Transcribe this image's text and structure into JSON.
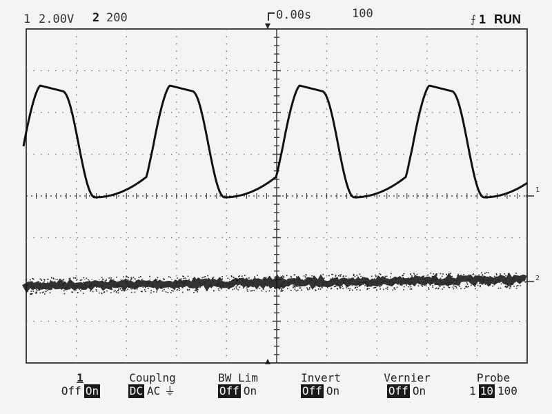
{
  "status": {
    "ch1_label": "1",
    "ch1_scale": "2.00V",
    "ch2_label": "2",
    "ch2_scale": "200",
    "time_offset": "0.00s",
    "time_scale": "100",
    "trigger_label": "1",
    "run_state": "RUN"
  },
  "markers": {
    "ch1": "1",
    "ch2": "2"
  },
  "softkeys": [
    {
      "title": "1",
      "options": [
        "Off",
        "On"
      ],
      "selected": 1
    },
    {
      "title": "Couplng",
      "options": [
        "DC",
        "AC",
        "⏚"
      ],
      "selected": 0
    },
    {
      "title": "BW Lim",
      "options": [
        "Off",
        "On"
      ],
      "selected": 0
    },
    {
      "title": "Invert",
      "options": [
        "Off",
        "On"
      ],
      "selected": 0
    },
    {
      "title": "Vernier",
      "options": [
        "Off",
        "On"
      ],
      "selected": 0
    },
    {
      "title": "Probe",
      "options": [
        "1",
        "10",
        "100"
      ],
      "selected": 1
    }
  ],
  "colors": {
    "trace": "#111111",
    "grid": "#555555",
    "background": "#f4f4f2"
  }
}
